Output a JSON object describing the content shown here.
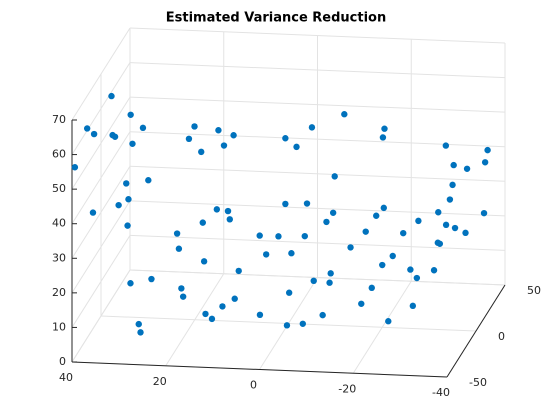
{
  "chart_data": {
    "type": "scatter3d",
    "title": "Estimated Variance Reduction",
    "color": "#0072bd",
    "xlim": [
      -40,
      40
    ],
    "xticks": [
      -40,
      -20,
      0,
      20,
      40
    ],
    "ylim": [
      -50,
      50
    ],
    "yticks": [
      -50,
      0,
      50
    ],
    "zlim": [
      0,
      70
    ],
    "zticks": [
      0,
      10,
      20,
      30,
      40,
      50,
      60,
      70
    ],
    "grid": true,
    "x": [
      30,
      28,
      25,
      22,
      20,
      18,
      15,
      12,
      10,
      8,
      5,
      3,
      0,
      -2,
      -5,
      -8,
      -10,
      -12,
      -15,
      -18,
      -20,
      -22,
      -25,
      -28,
      -30,
      26,
      21,
      16,
      11,
      6,
      1,
      -4,
      -9,
      -14,
      -19,
      -24,
      -29,
      24,
      14,
      4,
      -6,
      -16,
      -26,
      27,
      19,
      9,
      -1,
      -11,
      -21,
      -27,
      38,
      39,
      37,
      40,
      36,
      38,
      35,
      39,
      37,
      40,
      36,
      38,
      34,
      33,
      -36,
      -38,
      -35,
      -40,
      -37,
      -39,
      -34,
      -38,
      -36,
      -40,
      -33,
      -35,
      20,
      15,
      8,
      2,
      -5,
      -12,
      -18,
      25,
      10,
      -8,
      -22,
      18,
      5,
      -15,
      30,
      -28
    ],
    "y": [
      -30,
      -10,
      10,
      30,
      -20,
      0,
      20,
      -35,
      -5,
      15,
      35,
      -25,
      5,
      -15,
      25,
      -40,
      -10,
      10,
      30,
      -20,
      0,
      20,
      -30,
      -5,
      15,
      -45,
      -15,
      25,
      -25,
      10,
      40,
      -35,
      0,
      20,
      -10,
      30,
      -20,
      5,
      -30,
      15,
      -5,
      35,
      0,
      -40,
      30,
      -20,
      20,
      -30,
      10,
      40,
      -40,
      -20,
      0,
      20,
      40,
      -30,
      -10,
      10,
      30,
      -45,
      15,
      35,
      -5,
      25,
      -40,
      -20,
      0,
      20,
      40,
      -10,
      10,
      30,
      -30,
      -45,
      5,
      25,
      -10,
      10,
      -30,
      30,
      0,
      -20,
      20,
      40,
      -40,
      15,
      -15,
      -5,
      35,
      -25,
      -35,
      45
    ],
    "z": [
      18,
      14,
      22,
      20,
      12,
      17,
      24,
      10,
      16,
      21,
      25,
      9,
      19,
      13,
      23,
      11,
      15,
      20,
      24,
      12,
      18,
      22,
      10,
      16,
      21,
      8,
      13,
      25,
      11,
      17,
      24,
      9,
      15,
      22,
      14,
      23,
      12,
      19,
      10,
      21,
      14,
      25,
      17,
      9,
      24,
      12,
      20,
      11,
      18,
      23,
      65,
      58,
      52,
      47,
      44,
      38,
      35,
      61,
      42,
      55,
      30,
      49,
      40,
      33,
      28,
      35,
      42,
      47,
      38,
      31,
      45,
      26,
      33,
      50,
      29,
      40,
      55,
      48,
      62,
      43,
      57,
      38,
      52,
      45,
      66,
      39,
      59,
      50,
      44,
      68,
      36,
      41
    ]
  }
}
